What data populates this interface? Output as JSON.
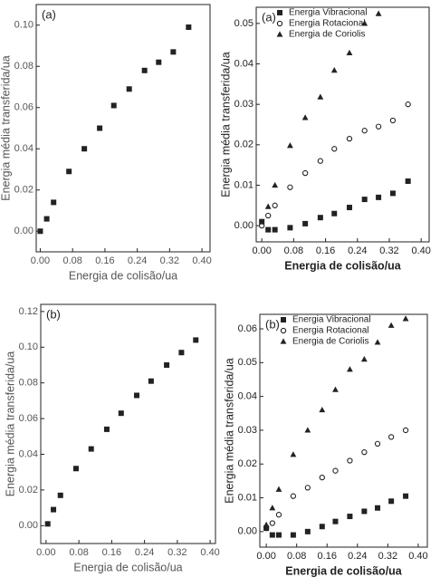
{
  "chart_data": [
    {
      "type": "scatter",
      "annotation": "(a)",
      "xlabel": "Energia de colisão/ua",
      "ylabel": "Energia média transferida/ua",
      "x": [
        0.0,
        0.016,
        0.033,
        0.071,
        0.109,
        0.147,
        0.182,
        0.22,
        0.258,
        0.293,
        0.329,
        0.367
      ],
      "values": [
        0.0,
        0.006,
        0.014,
        0.029,
        0.04,
        0.05,
        0.061,
        0.069,
        0.078,
        0.082,
        0.087,
        0.099
      ],
      "marker": "square",
      "color": "#222222",
      "xlim": [
        -0.01,
        0.42
      ],
      "ylim": [
        -0.01,
        0.11
      ],
      "xticks": [
        {
          "value": 0,
          "label": "0.00"
        },
        {
          "value": 0.08,
          "label": "0.08"
        },
        {
          "value": 0.16,
          "label": "0.16"
        },
        {
          "value": 0.24,
          "label": "0.24"
        },
        {
          "value": 0.32,
          "label": "0.32"
        },
        {
          "value": 0.4,
          "label": "0.40"
        }
      ],
      "yticks": [
        {
          "value": 0,
          "label": "0.00"
        },
        {
          "value": 0.02,
          "label": "0.02"
        },
        {
          "value": 0.04,
          "label": "0.04"
        },
        {
          "value": 0.06,
          "label": "0.06"
        },
        {
          "value": 0.08,
          "label": "0.08"
        },
        {
          "value": 0.1,
          "label": "0.10"
        }
      ]
    },
    {
      "type": "scatter",
      "annotation": "(a)",
      "xlabel": "Energia de colisão/ua",
      "ylabel": "Energia média transferida/ua",
      "legend": "upper left",
      "x": [
        0.0,
        0.016,
        0.033,
        0.071,
        0.109,
        0.147,
        0.182,
        0.22,
        0.258,
        0.293,
        0.329,
        0.367
      ],
      "series": [
        {
          "name": "Energia Vibracional",
          "marker": "square",
          "color": "#222222",
          "values": [
            0.001,
            -0.001,
            -0.001,
            -0.0005,
            0.0005,
            0.002,
            0.003,
            0.0045,
            0.0065,
            0.007,
            0.008,
            0.011
          ]
        },
        {
          "name": "Energia Rotacional",
          "marker": "circle",
          "color": "#222222",
          "values": [
            0.0,
            0.0025,
            0.005,
            0.0095,
            0.013,
            0.016,
            0.019,
            0.0215,
            0.0235,
            0.0245,
            0.026,
            0.03
          ]
        },
        {
          "name": "Energia de Coriolis",
          "marker": "triangle",
          "color": "#222222",
          "values": [
            null,
            0.0047,
            0.01,
            0.0198,
            0.0267,
            0.0318,
            0.0384,
            0.0427,
            0.05,
            0.0524,
            null,
            null
          ]
        }
      ],
      "xlim": [
        -0.014,
        0.42
      ],
      "ylim": [
        -0.004,
        0.054
      ],
      "xticks": [
        {
          "value": 0,
          "label": "0.00"
        },
        {
          "value": 0.08,
          "label": "0.08"
        },
        {
          "value": 0.16,
          "label": "0.16"
        },
        {
          "value": 0.24,
          "label": "0.24"
        },
        {
          "value": 0.32,
          "label": "0.32"
        },
        {
          "value": 0.4,
          "label": "0.40"
        }
      ],
      "yticks": [
        {
          "value": 0,
          "label": "0.00"
        },
        {
          "value": 0.01,
          "label": "0.01"
        },
        {
          "value": 0.02,
          "label": "0.02"
        },
        {
          "value": 0.03,
          "label": "0.03"
        },
        {
          "value": 0.04,
          "label": "0.04"
        },
        {
          "value": 0.05,
          "label": "0.05"
        }
      ]
    },
    {
      "type": "scatter",
      "annotation": "(b)",
      "xlabel": "Energia de colisão/ua",
      "ylabel": "Energia média transferida/ua",
      "x": [
        0.004,
        0.018,
        0.035,
        0.073,
        0.11,
        0.148,
        0.183,
        0.221,
        0.256,
        0.294,
        0.33,
        0.365
      ],
      "values": [
        0.001,
        0.009,
        0.017,
        0.032,
        0.043,
        0.054,
        0.063,
        0.073,
        0.081,
        0.09,
        0.097,
        0.104
      ],
      "marker": "square",
      "color": "#222222",
      "xlim": [
        -0.013,
        0.413
      ],
      "ylim": [
        -0.01,
        0.124
      ],
      "xticks": [
        {
          "value": 0,
          "label": "0.00"
        },
        {
          "value": 0.08,
          "label": "0.08"
        },
        {
          "value": 0.16,
          "label": "0.16"
        },
        {
          "value": 0.24,
          "label": "0.24"
        },
        {
          "value": 0.32,
          "label": "0.32"
        },
        {
          "value": 0.4,
          "label": "0.40"
        }
      ],
      "yticks": [
        {
          "value": 0,
          "label": "0.00"
        },
        {
          "value": 0.02,
          "label": "0.02"
        },
        {
          "value": 0.04,
          "label": "0.04"
        },
        {
          "value": 0.06,
          "label": "0.06"
        },
        {
          "value": 0.08,
          "label": "0.08"
        },
        {
          "value": 0.1,
          "label": "0.10"
        },
        {
          "value": 0.12,
          "label": "0.12"
        }
      ]
    },
    {
      "type": "scatter",
      "annotation": "(b)",
      "xlabel": "Energia de colisão/ua",
      "ylabel": "Energia média transferida/ua",
      "legend": "upper left",
      "x": [
        0.0,
        0.016,
        0.033,
        0.071,
        0.109,
        0.147,
        0.182,
        0.22,
        0.258,
        0.293,
        0.329,
        0.367
      ],
      "series": [
        {
          "name": "Energia Vibracional",
          "marker": "square",
          "color": "#222222",
          "values": [
            0.001,
            -0.001,
            -0.001,
            -0.001,
            0.0,
            0.0015,
            0.003,
            0.0045,
            0.006,
            0.007,
            0.009,
            0.0105
          ]
        },
        {
          "name": "Energia Rotacional",
          "marker": "circle",
          "color": "#222222",
          "values": [
            0.001,
            0.0025,
            0.005,
            0.0105,
            0.013,
            0.016,
            0.018,
            0.021,
            0.0235,
            0.026,
            0.028,
            0.03
          ]
        },
        {
          "name": "Energia de Coriolis",
          "marker": "triangle",
          "color": "#222222",
          "values": [
            0.002,
            0.007,
            0.0125,
            0.0228,
            0.03,
            0.036,
            0.042,
            0.048,
            0.051,
            0.056,
            0.061,
            0.063
          ]
        }
      ],
      "xlim": [
        -0.017,
        0.424
      ],
      "ylim": [
        -0.0046,
        0.0643
      ],
      "xticks": [
        {
          "value": 0,
          "label": "0.00"
        },
        {
          "value": 0.08,
          "label": "0.08"
        },
        {
          "value": 0.16,
          "label": "0.16"
        },
        {
          "value": 0.24,
          "label": "0.24"
        },
        {
          "value": 0.32,
          "label": "0.32"
        },
        {
          "value": 0.4,
          "label": "0.40"
        }
      ],
      "yticks": [
        {
          "value": 0,
          "label": "0.00"
        },
        {
          "value": 0.01,
          "label": "0.01"
        },
        {
          "value": 0.02,
          "label": "0.02"
        },
        {
          "value": 0.03,
          "label": "0.03"
        },
        {
          "value": 0.04,
          "label": "0.04"
        },
        {
          "value": 0.05,
          "label": "0.05"
        },
        {
          "value": 0.06,
          "label": "0.06"
        }
      ]
    }
  ]
}
